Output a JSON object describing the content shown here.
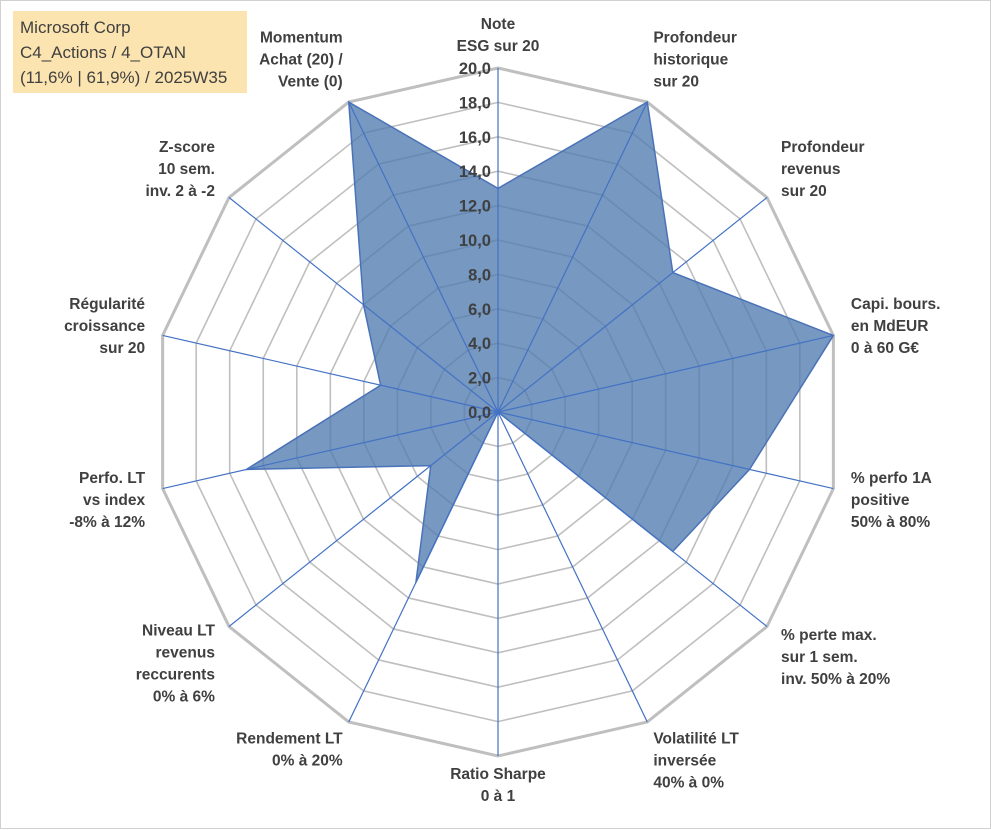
{
  "info_box": {
    "line1": "Microsoft Corp",
    "line2": "C4_Actions / 4_OTAN",
    "line3": "(11,6% | 61,9%) / 2025W35"
  },
  "colors": {
    "series_fill": "#4f7bb0",
    "series_line": "#4a72b8",
    "grid": "#bfbfbf",
    "axis": "#4472c4",
    "info_box_bg": "#fce4b0",
    "text": "#404040"
  },
  "chart_data": {
    "type": "radar",
    "rlim": [
      0,
      20
    ],
    "r_ticks": [
      "0,0",
      "2,0",
      "4,0",
      "6,0",
      "8,0",
      "10,0",
      "12,0",
      "14,0",
      "16,0",
      "18,0",
      "20,0"
    ],
    "grid": true,
    "legend": "none",
    "categories": [
      [
        "Note",
        "ESG sur 20"
      ],
      [
        "Profondeur",
        "historique",
        "sur 20"
      ],
      [
        "Profondeur",
        "revenus",
        "sur 20"
      ],
      [
        "Capi. bours.",
        "en MdEUR",
        "0 à 60 G€"
      ],
      [
        "% perfo 1A",
        "positive",
        "50% à 80%"
      ],
      [
        "% perte max.",
        "sur 1 sem.",
        "inv. 50% à 20%"
      ],
      [
        "Volatilité LT",
        "inversée",
        "40% à 0%"
      ],
      [
        "Ratio Sharpe",
        "0 à 1"
      ],
      [
        "Rendement LT",
        "0% à 20%"
      ],
      [
        "Niveau LT",
        "revenus",
        "reccurents",
        "0% à 6%"
      ],
      [
        "Perfo. LT",
        "vs index",
        "-8% à 12%"
      ],
      [
        "Régularité",
        "croissance",
        "sur 20"
      ],
      [
        "Z-score",
        "10 sem.",
        "inv. 2 à -2"
      ],
      [
        "Momentum",
        "Achat (20) /",
        "Vente (0)"
      ]
    ],
    "series": [
      {
        "values": [
          13.0,
          20.0,
          13.0,
          20.0,
          15.0,
          13.0,
          0.0,
          0.0,
          11.0,
          5.0,
          15.0,
          7.0,
          10.0,
          20.0
        ]
      }
    ]
  }
}
